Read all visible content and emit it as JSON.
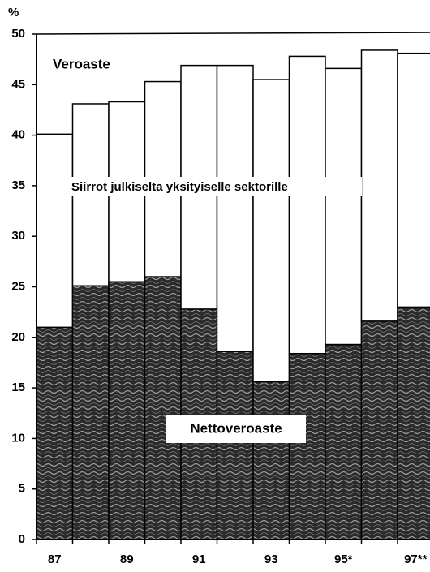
{
  "chart_data": {
    "type": "stacked_bar",
    "y_axis_label": "%",
    "categories": [
      "87",
      null,
      "89",
      null,
      "91",
      null,
      "93",
      null,
      "95*",
      null,
      "97**"
    ],
    "series": [
      {
        "name": "Nettoveroaste",
        "color": "#2a2a2a",
        "values": [
          21.0,
          25.1,
          25.5,
          26.0,
          22.8,
          18.6,
          15.6,
          18.4,
          19.3,
          21.6,
          23.0
        ]
      },
      {
        "name": "Siirrot julkiselta yksityiselle sektorille",
        "color": "#ffffff",
        "values": [
          19.1,
          18.0,
          17.8,
          19.3,
          24.1,
          28.3,
          29.9,
          29.4,
          27.3,
          26.8,
          25.1
        ]
      }
    ],
    "annotations": [
      "Veroaste"
    ],
    "ylim": [
      0,
      50
    ],
    "yticks": [
      0,
      5,
      10,
      15,
      20,
      25,
      30,
      35,
      40,
      45,
      50
    ]
  }
}
